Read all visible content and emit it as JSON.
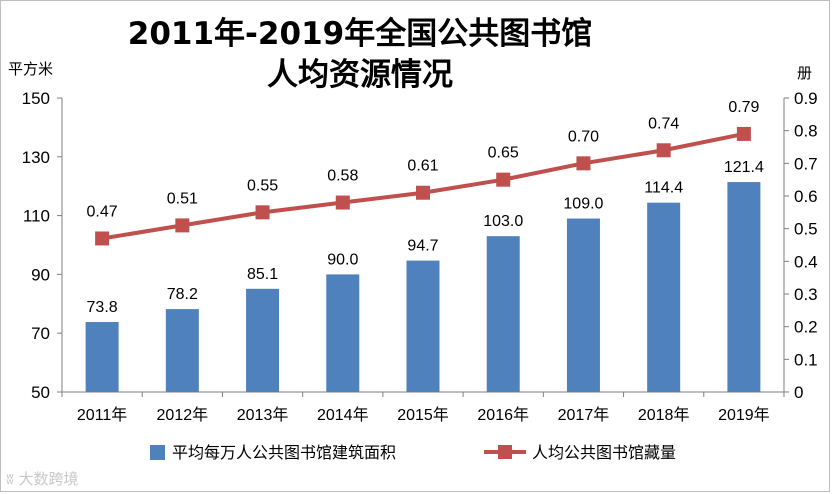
{
  "chart_data": {
    "type": "bar+line",
    "title_line1": "2011年-2019年全国公共图书馆",
    "title_line2": "人均资源情况",
    "y_left_unit": "平方米",
    "y_right_unit": "册",
    "categories": [
      "2011年",
      "2012年",
      "2013年",
      "2014年",
      "2015年",
      "2016年",
      "2017年",
      "2018年",
      "2019年"
    ],
    "y_left_ticks": [
      "150",
      "130",
      "110",
      "90",
      "70",
      "50"
    ],
    "y_right_ticks": [
      "0.9",
      "0.8",
      "0.7",
      "0.6",
      "0.5",
      "0.4",
      "0.3",
      "0.2",
      "0.1",
      "0"
    ],
    "ylim_left": [
      50,
      150
    ],
    "ylim_right": [
      0,
      0.9
    ],
    "series": [
      {
        "name": "平均每万人公共图书馆建筑面积",
        "type": "bar",
        "axis": "left",
        "color": "#4f81bd",
        "values": [
          73.8,
          78.2,
          85.1,
          90.0,
          94.7,
          103.0,
          109.0,
          114.4,
          121.4
        ],
        "labels": [
          "73.8",
          "78.2",
          "85.1",
          "90.0",
          "94.7",
          "103.0",
          "109.0",
          "114.4",
          "121.4"
        ]
      },
      {
        "name": "人均公共图书馆藏量",
        "type": "line",
        "axis": "right",
        "color": "#c0504d",
        "values": [
          0.47,
          0.51,
          0.55,
          0.58,
          0.61,
          0.65,
          0.7,
          0.74,
          0.79
        ],
        "labels": [
          "0.47",
          "0.51",
          "0.55",
          "0.58",
          "0.61",
          "0.65",
          "0.70",
          "0.74",
          "0.79"
        ]
      }
    ]
  },
  "watermark": "大数跨境"
}
